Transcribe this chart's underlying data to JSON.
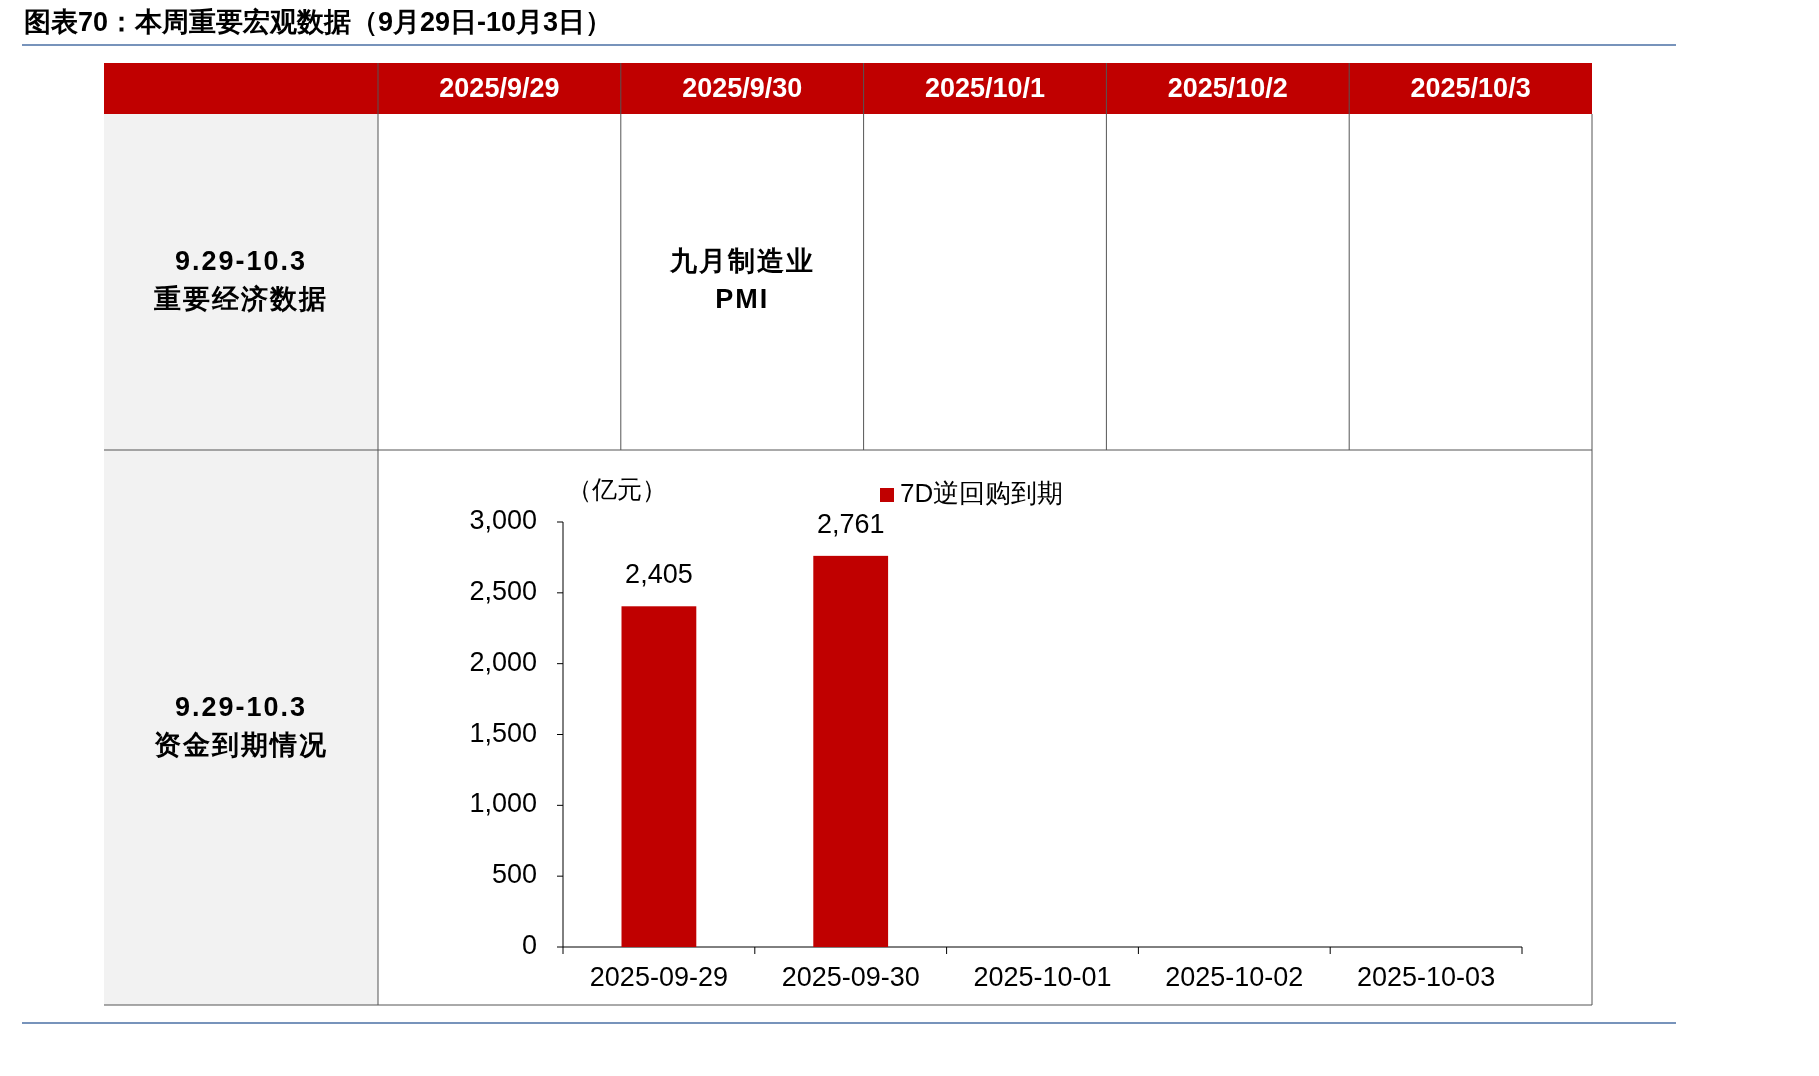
{
  "chart_data": [
    {
      "type": "other",
      "title": "图表70：本周重要宏观数据（9月29日-10月3日）",
      "categories": [
        "2025/9/29",
        "2025/9/30",
        "2025/10/1",
        "2025/10/2",
        "2025/10/3"
      ],
      "color": "#c00000",
      "annotations": [
        "9.29-10.3\n重要经济数据",
        "九月制造业\nPMI",
        "9.29-10.3\n资金到期情况"
      ]
    },
    {
      "type": "bar",
      "ylabel": "（亿元）",
      "categories": [
        "2025-09-29",
        "2025-09-30",
        "2025-10-01",
        "2025-10-02",
        "2025-10-03"
      ],
      "series": [
        {
          "name": "7D逆回购到期",
          "color": "#c00000",
          "values": [
            2405,
            2761,
            null,
            null,
            null
          ]
        }
      ],
      "value_labels": [
        "2,405",
        "2,761",
        null,
        null,
        null
      ],
      "ylim": [
        0,
        3000
      ],
      "yticks": [
        {
          "value": 0,
          "label": "0"
        },
        {
          "value": 500,
          "label": "500"
        },
        {
          "value": 1000,
          "label": "1,000"
        },
        {
          "value": 1500,
          "label": "1,500"
        },
        {
          "value": 2000,
          "label": "2,000"
        },
        {
          "value": 2500,
          "label": "2,500"
        },
        {
          "value": 3000,
          "label": "3,000"
        }
      ],
      "legend": "top",
      "grid": false
    }
  ]
}
